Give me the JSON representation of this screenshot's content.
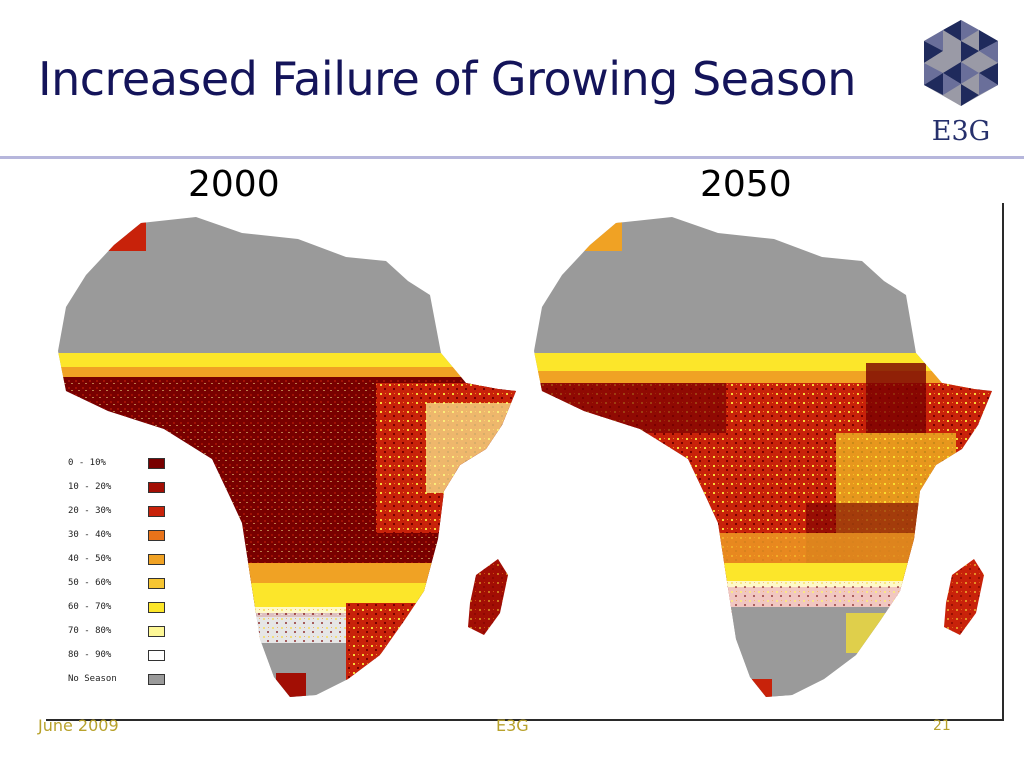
{
  "slide": {
    "title": "Increased Failure of Growing Season"
  },
  "logo": {
    "text": "E3G",
    "colors": {
      "dark": "#1f2a5c",
      "mid": "#6a6f9a",
      "light": "#9a9aa6"
    }
  },
  "maps": [
    {
      "year_label": "2000"
    },
    {
      "year_label": "2050"
    }
  ],
  "legend": {
    "items": [
      {
        "label": "0 - 10%",
        "color": "#780000"
      },
      {
        "label": "10 - 20%",
        "color": "#a20e04"
      },
      {
        "label": "20 - 30%",
        "color": "#c8220a"
      },
      {
        "label": "30 - 40%",
        "color": "#e8731a"
      },
      {
        "label": "40 - 50%",
        "color": "#f0a224"
      },
      {
        "label": "50 - 60%",
        "color": "#f6c532"
      },
      {
        "label": "60 - 70%",
        "color": "#fce62a"
      },
      {
        "label": "70 - 80%",
        "color": "#fdf796"
      },
      {
        "label": "80 - 90%",
        "color": "#ffffff"
      },
      {
        "label": "No Season",
        "color": "#9a9a9a"
      }
    ]
  },
  "footer": {
    "date": "June 2009",
    "org": "E3G",
    "page": "21"
  }
}
